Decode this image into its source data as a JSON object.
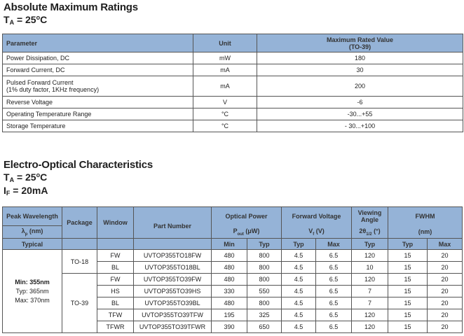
{
  "section1": {
    "title": "Absolute Maximum Ratings",
    "condition": {
      "symbol": "T",
      "sub": "A",
      "value": " = 25",
      "sup": "o",
      "unit": "C"
    },
    "headers": {
      "parameter": "Parameter",
      "unit": "Unit",
      "value_line1": "Maximum Rated Value",
      "value_line2": "(TO-39)"
    },
    "rows": [
      {
        "parameter": "Power Dissipation, DC",
        "unit": "mW",
        "value": "180"
      },
      {
        "parameter": "Forward Current, DC",
        "unit": "mA",
        "value": "30"
      },
      {
        "parameter": "Pulsed Forward Current",
        "parameter_note": "(1% duty factor, 1KHz frequency)",
        "unit": "mA",
        "value": "200"
      },
      {
        "parameter": "Reverse Voltage",
        "unit": "V",
        "value": "-6"
      },
      {
        "parameter": "Operating Temperature Range",
        "unit": "°C",
        "value": "-30...+55"
      },
      {
        "parameter": "Storage Temperature",
        "unit": "°C",
        "value": "- 30...+100"
      }
    ]
  },
  "section2": {
    "title": "Electro-Optical Characteristics",
    "condition1": {
      "symbol": "T",
      "sub": "A",
      "value": " = 25",
      "sup": "o",
      "unit": "C"
    },
    "condition2": {
      "symbol": "I",
      "sub": "F",
      "value": " = 20mA"
    },
    "headers": {
      "peak_wavelength": "Peak Wavelength",
      "lambda": "λ",
      "lambda_sub": "p",
      "lambda_unit": " (nm)",
      "typical": "Typical",
      "package": "Package",
      "window": "Window",
      "part_number": "Part Number",
      "optical_power": "Optical Power",
      "pout": "P",
      "pout_sub": "out",
      "pout_unit": " (μW)",
      "forward_voltage": "Forward Voltage",
      "vf": "V",
      "vf_sub": "f",
      "vf_unit": " (V)",
      "viewing_angle": "Viewing Angle",
      "theta": "2θ",
      "theta_sub": "1/2",
      "theta_unit": " (°)",
      "fwhm": "FWHM",
      "fwhm_unit": "(nm)",
      "min": "Min",
      "typ": "Typ",
      "max": "Max"
    },
    "wavelength": {
      "min": "Min: 355nm",
      "typ": "Typ:  365nm",
      "max": "Max: 370nm"
    },
    "packages": [
      "TO-18",
      "TO-39"
    ],
    "rows": [
      {
        "window": "FW",
        "part": "UVTOP355TO18FW",
        "p_min": "480",
        "p_typ": "800",
        "vf_typ": "4.5",
        "vf_max": "6.5",
        "angle": "120",
        "fwhm_typ": "15",
        "fwhm_max": "20"
      },
      {
        "window": "BL",
        "part": "UVTOP355TO18BL",
        "p_min": "480",
        "p_typ": "800",
        "vf_typ": "4.5",
        "vf_max": "6.5",
        "angle": "10",
        "fwhm_typ": "15",
        "fwhm_max": "20"
      },
      {
        "window": "FW",
        "part": "UVTOP355TO39FW",
        "p_min": "480",
        "p_typ": "800",
        "vf_typ": "4.5",
        "vf_max": "6.5",
        "angle": "120",
        "fwhm_typ": "15",
        "fwhm_max": "20"
      },
      {
        "window": "HS",
        "part": "UVTOP355TO39HS",
        "p_min": "330",
        "p_typ": "550",
        "vf_typ": "4.5",
        "vf_max": "6.5",
        "angle": "7",
        "fwhm_typ": "15",
        "fwhm_max": "20"
      },
      {
        "window": "BL",
        "part": "UVTOP355TO39BL",
        "p_min": "480",
        "p_typ": "800",
        "vf_typ": "4.5",
        "vf_max": "6.5",
        "angle": "7",
        "fwhm_typ": "15",
        "fwhm_max": "20"
      },
      {
        "window": "TFW",
        "part": "UVTOP355TO39TFW",
        "p_min": "195",
        "p_typ": "325",
        "vf_typ": "4.5",
        "vf_max": "6.5",
        "angle": "120",
        "fwhm_typ": "15",
        "fwhm_max": "20"
      },
      {
        "window": "TFWR",
        "part": "UVTOP355TO39TFWR",
        "p_min": "390",
        "p_typ": "650",
        "vf_typ": "4.5",
        "vf_max": "6.5",
        "angle": "120",
        "fwhm_typ": "15",
        "fwhm_max": "20"
      }
    ]
  }
}
